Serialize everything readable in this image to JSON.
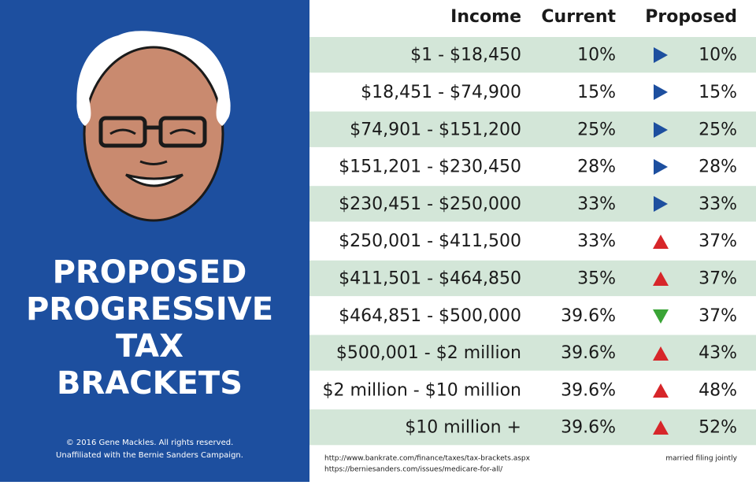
{
  "title_lines": [
    "PROPOSED",
    "PROGRESSIVE",
    "TAX",
    "BRACKETS"
  ],
  "credits": [
    "© 2016 Gene Mackles. All rights reserved.",
    "Unaffiliated with the Bernie Sanders Campaign."
  ],
  "table": {
    "headers": [
      "Income",
      "Current",
      "Proposed"
    ],
    "rows": [
      [
        "$1 - $18,450",
        "10%",
        "10%"
      ],
      [
        "$18,451 - $74,900",
        "15%",
        "15%"
      ],
      [
        "$74,901 - $151,200",
        "25%",
        "25%"
      ],
      [
        "$151,201 - $230,450",
        "28%",
        "28%"
      ],
      [
        "$230,451 - $250,000",
        "33%",
        "33%"
      ],
      [
        "$250,001 - $411,500",
        "33%",
        "37%"
      ],
      [
        "$411,501 - $464,850",
        "35%",
        "37%"
      ],
      [
        "$464,851 - $500,000",
        "39.6%",
        "37%"
      ],
      [
        "$500,001 - $2 million",
        "39.6%",
        "43%"
      ],
      [
        "$2 million - $10 million",
        "39.6%",
        "48%"
      ],
      [
        "$10 million +",
        "39.6%",
        "52%"
      ]
    ]
  },
  "sources": [
    "http://www.bankrate.com/finance/taxes/tax-brackets.aspx",
    "https://berniesanders.com/issues/medicare-for-all/"
  ],
  "note": "married filing jointly"
}
